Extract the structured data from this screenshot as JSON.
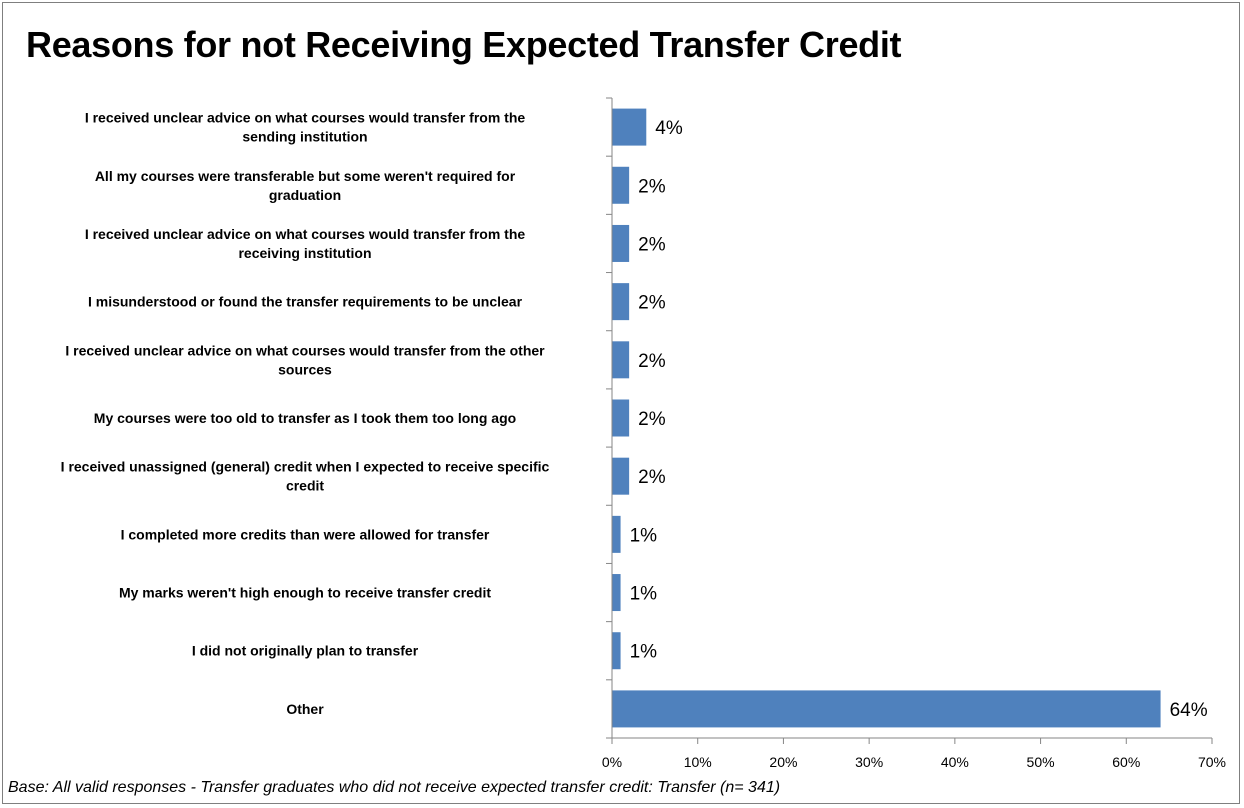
{
  "chart_data": {
    "type": "bar",
    "orientation": "horizontal",
    "title": "Reasons for not Receiving Expected Transfer Credit",
    "footnote": "Base:  All valid responses - Transfer graduates who did not receive expected transfer credit: Transfer (n= 341)",
    "categories": [
      [
        "I received unclear advice on what courses would transfer from the",
        "sending institution"
      ],
      [
        "All my courses were transferable but some weren't required for",
        "graduation"
      ],
      [
        "I received unclear advice on what courses would transfer from the",
        "receiving institution"
      ],
      [
        "I misunderstood or found the transfer requirements to be unclear"
      ],
      [
        "I received unclear advice on what courses would transfer from the other",
        "sources"
      ],
      [
        "My courses were too old to transfer as I took them too long ago"
      ],
      [
        "I received unassigned (general) credit when I expected to receive specific",
        "credit"
      ],
      [
        "I completed more credits than were allowed for transfer"
      ],
      [
        "My marks weren't high enough to receive transfer credit"
      ],
      [
        "I did not originally plan to transfer"
      ],
      [
        "Other"
      ]
    ],
    "values": [
      4,
      2,
      2,
      2,
      2,
      2,
      2,
      1,
      1,
      1,
      64
    ],
    "value_labels": [
      "4%",
      "2%",
      "2%",
      "2%",
      "2%",
      "2%",
      "2%",
      "1%",
      "1%",
      "1%",
      "64%"
    ],
    "xlim": [
      0,
      70
    ],
    "xticks": [
      0,
      10,
      20,
      30,
      40,
      50,
      60,
      70
    ],
    "xtick_labels": [
      "0%",
      "10%",
      "20%",
      "30%",
      "40%",
      "50%",
      "60%",
      "70%"
    ],
    "xlabel": "",
    "ylabel": "",
    "grid": false,
    "legend": "none",
    "bar_color": "#4f81bd"
  }
}
